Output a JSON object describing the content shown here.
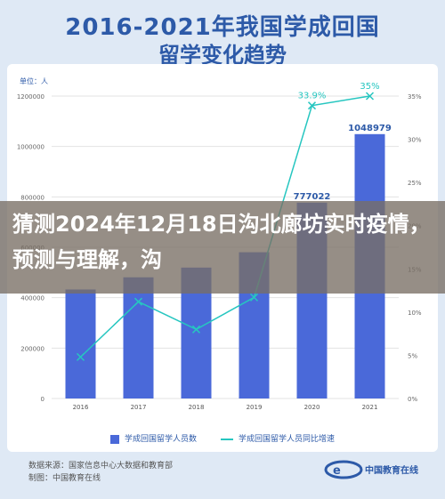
{
  "chart_data": {
    "type": "bar",
    "title": "2016-2021年我国学成回国",
    "subtitle": "留学变化趋势",
    "unit_label": "单位：人",
    "categories": [
      "2016",
      "2017",
      "2018",
      "2019",
      "2020",
      "2021"
    ],
    "series": [
      {
        "name": "学成回国留学人员数",
        "type": "bar",
        "values": [
          432500,
          480900,
          519400,
          580300,
          777022,
          1048979
        ],
        "color": "#4a69d9"
      },
      {
        "name": "学成回国留学人员同比增速",
        "type": "line",
        "values": [
          4.8,
          11.2,
          8.0,
          11.7,
          33.9,
          35.0
        ],
        "color": "#26c6c0"
      }
    ],
    "data_labels": {
      "bar": [
        "777022",
        "1048979"
      ],
      "line": [
        "33.9%",
        "35%"
      ]
    },
    "y_left_ticks": [
      "0",
      "200000",
      "400000",
      "600000",
      "800000",
      "1000000",
      "1200000"
    ],
    "y_right_ticks": [
      "0%",
      "5%",
      "10%",
      "15%",
      "20%",
      "25%",
      "30%",
      "35%"
    ],
    "ylim_left": [
      0,
      1200000
    ],
    "ylim_right": [
      0,
      35
    ],
    "grid": true,
    "legend": "bottom"
  },
  "banner": {
    "text": "猜测2024年12月18日沟北廊坊实时疫情，预测与理解，沟"
  },
  "source": {
    "line1": "数据来源：国家信息中心大数据和教育部",
    "line2": "制图：中国教育在线"
  },
  "logo": {
    "text": "中国教育在线"
  }
}
